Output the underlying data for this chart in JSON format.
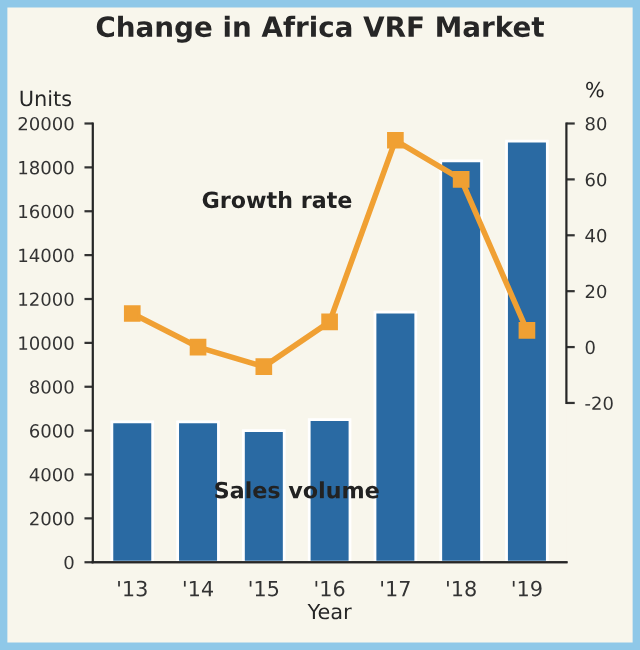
{
  "chart_data": {
    "type": "bar",
    "title": "Change in Africa VRF Market",
    "xlabel": "Year",
    "ylabel": "Units",
    "y2label": "%",
    "categories": [
      "'13",
      "'14",
      "'15",
      "'16",
      "'17",
      "'18",
      "'19"
    ],
    "series": [
      {
        "name": "Sales volume",
        "color": "#2a6aa3",
        "values": [
          6400,
          6400,
          6000,
          6500,
          11400,
          18300,
          19200
        ]
      },
      {
        "name": "Growth rate",
        "type": "line",
        "axis": "y2",
        "color": "#f0a033",
        "marker": "square",
        "values": [
          12,
          0,
          -7,
          9,
          74,
          60,
          6
        ]
      }
    ],
    "ylim": [
      0,
      20000
    ],
    "yticks": [
      0,
      2000,
      4000,
      6000,
      8000,
      10000,
      12000,
      14000,
      16000,
      18000,
      20000
    ],
    "y2lim": [
      -77,
      80
    ],
    "y2ticks": [
      -20,
      0,
      20,
      40,
      60,
      80
    ],
    "grid": false,
    "legend": false
  }
}
